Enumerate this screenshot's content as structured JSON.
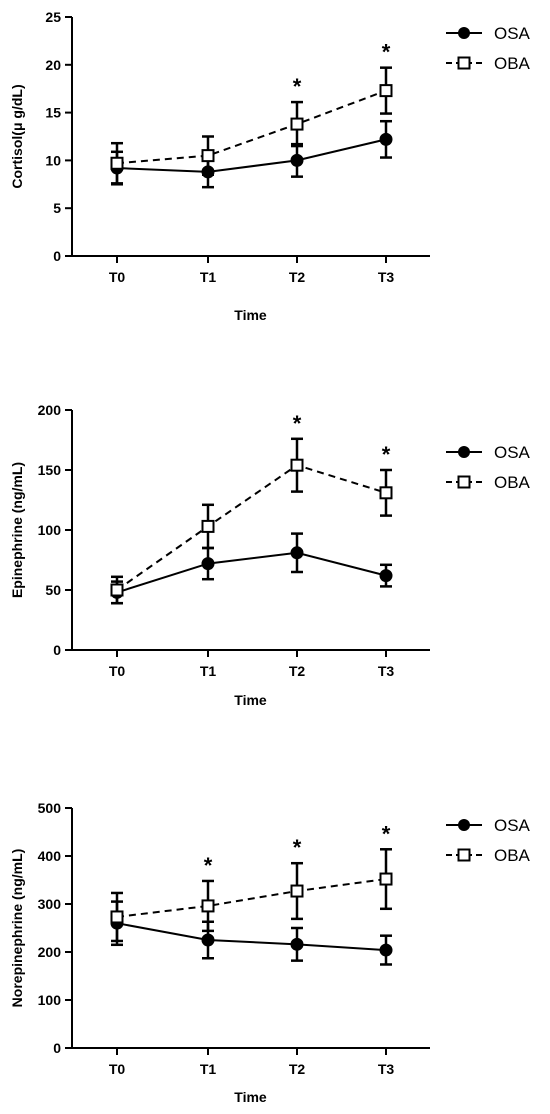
{
  "chart_data": [
    {
      "type": "line",
      "xlabel": "Time",
      "ylabel": "Cortisol(μ g/dL)",
      "categories": [
        "T0",
        "T1",
        "T2",
        "T3"
      ],
      "ylim": [
        0,
        25
      ],
      "yticks": [
        0,
        5,
        10,
        15,
        20,
        25
      ],
      "legend": "top-right",
      "series": [
        {
          "name": "OSA",
          "marker": "filled-circle",
          "line": "solid",
          "values": [
            9.2,
            8.8,
            10.0,
            12.2
          ],
          "error": [
            1.7,
            1.6,
            1.7,
            1.9
          ]
        },
        {
          "name": "OBA",
          "marker": "open-square",
          "line": "dashed",
          "values": [
            9.7,
            10.5,
            13.8,
            17.3
          ],
          "error": [
            2.1,
            2.0,
            2.3,
            2.4
          ]
        }
      ],
      "significance": [
        {
          "category": "T2",
          "label": "*"
        },
        {
          "category": "T3",
          "label": "*"
        }
      ]
    },
    {
      "type": "line",
      "xlabel": "Time",
      "ylabel": "Epinephrine (ng/mL)",
      "categories": [
        "T0",
        "T1",
        "T2",
        "T3"
      ],
      "ylim": [
        0,
        200
      ],
      "yticks": [
        0,
        50,
        100,
        150,
        200
      ],
      "legend": "top-right",
      "series": [
        {
          "name": "OSA",
          "marker": "filled-circle",
          "line": "solid",
          "values": [
            48,
            72,
            81,
            62
          ],
          "error": [
            9,
            13,
            16,
            9
          ]
        },
        {
          "name": "OBA",
          "marker": "open-square",
          "line": "dashed",
          "values": [
            50,
            103,
            154,
            131
          ],
          "error": [
            11,
            18,
            22,
            19
          ]
        }
      ],
      "significance": [
        {
          "category": "T2",
          "label": "*"
        },
        {
          "category": "T3",
          "label": "*"
        }
      ]
    },
    {
      "type": "line",
      "xlabel": "Time",
      "ylabel": "Norepinephrine (ng/mL)",
      "categories": [
        "T0",
        "T1",
        "T2",
        "T3"
      ],
      "ylim": [
        0,
        500
      ],
      "yticks": [
        0,
        100,
        200,
        300,
        400,
        500
      ],
      "legend": "top-right",
      "series": [
        {
          "name": "OSA",
          "marker": "filled-circle",
          "line": "solid",
          "values": [
            260,
            225,
            216,
            204
          ],
          "error": [
            45,
            38,
            34,
            30
          ]
        },
        {
          "name": "OBA",
          "marker": "open-square",
          "line": "dashed",
          "values": [
            273,
            296,
            327,
            352
          ],
          "error": [
            50,
            52,
            58,
            62
          ]
        }
      ],
      "significance": [
        {
          "category": "T1",
          "label": "*"
        },
        {
          "category": "T2",
          "label": "*"
        },
        {
          "category": "T3",
          "label": "*"
        }
      ]
    }
  ]
}
